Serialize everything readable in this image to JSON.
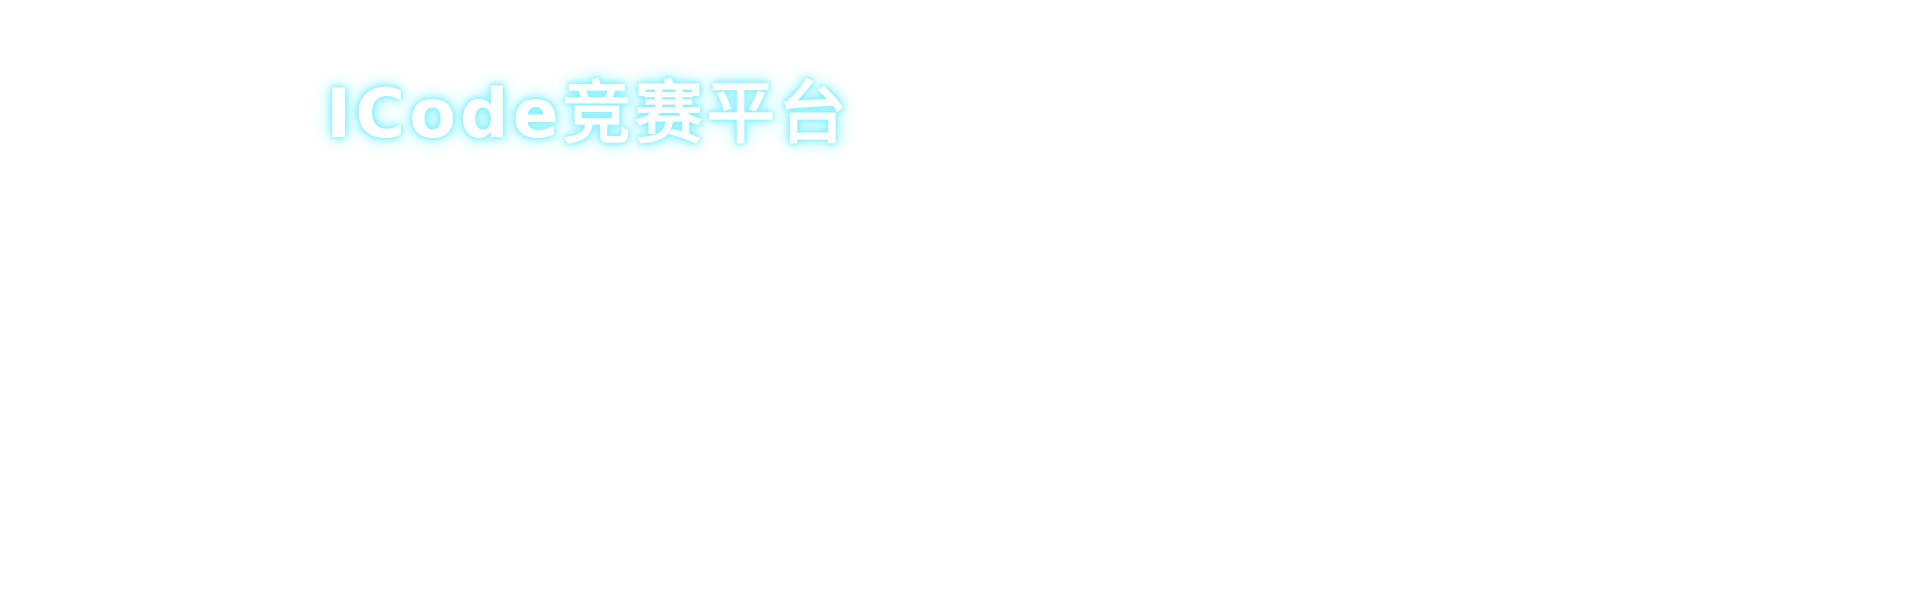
{
  "header": {
    "title": "ICode竞赛平台",
    "glow_color": "#8ef2ff",
    "text_color": "#ffffff"
  }
}
